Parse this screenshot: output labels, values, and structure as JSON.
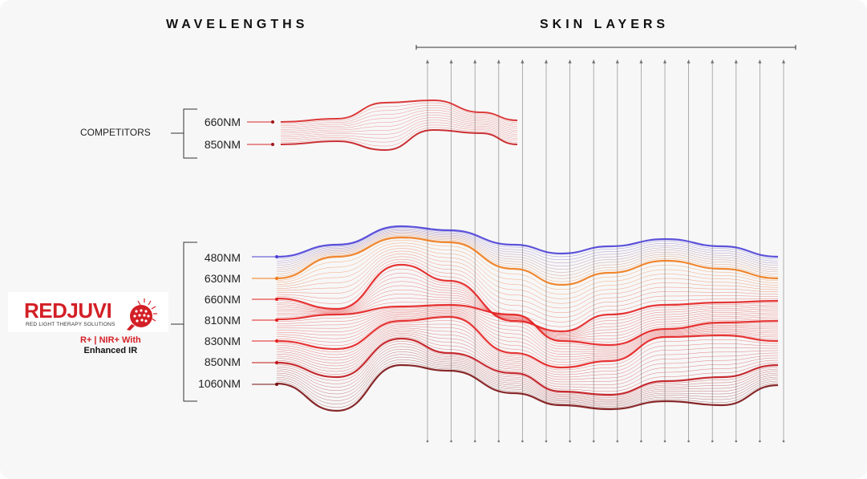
{
  "headings": {
    "wavelengths": "WAVELENGTHS",
    "skin_layers": "SKIN LAYERS"
  },
  "competitors": {
    "label": "COMPETITORS",
    "wavelengths": [
      "660NM",
      "850NM"
    ]
  },
  "redjuvi": {
    "brand": "REDJUVI",
    "subtitle": "RED LIGHT THERAPY SOLUTIONS",
    "tagline_part1": "R+",
    "tagline_sep": " | ",
    "tagline_part2": "NIR+ With",
    "tagline_line2": "Enhanced IR",
    "wavelengths": [
      "480NM",
      "630NM",
      "660NM",
      "810NM",
      "830NM",
      "850NM",
      "1060NM"
    ]
  },
  "colors": {
    "blue": "#4a3fd6",
    "orange": "#f07a1a",
    "red": "#e41f1f",
    "dark_red": "#7a0f12",
    "brand_red": "#d31f26"
  },
  "skin_layer_guides": 16
}
